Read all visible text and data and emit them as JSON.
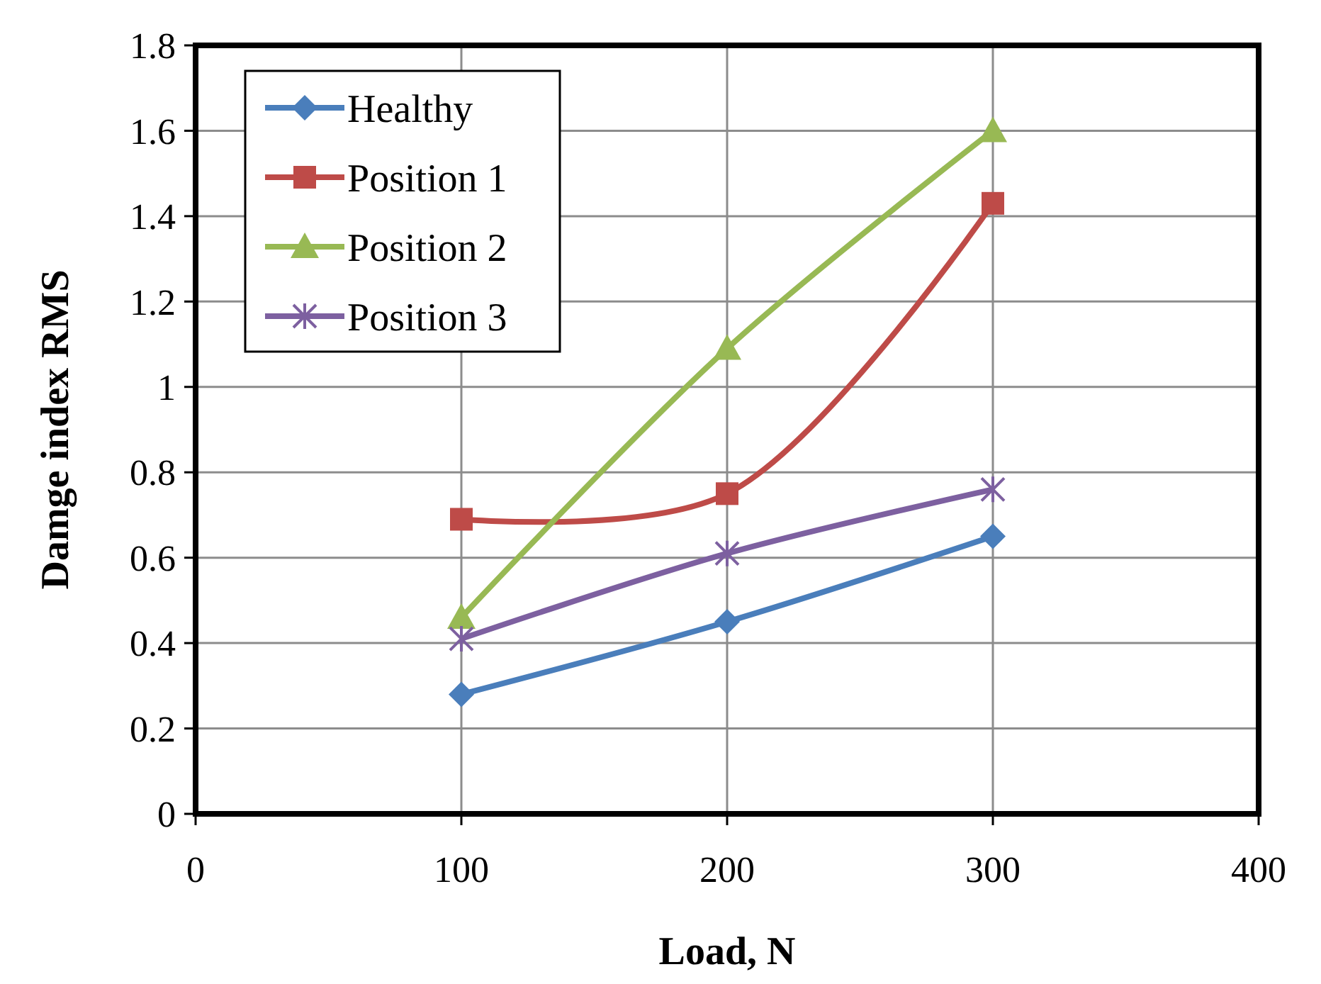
{
  "chart_data": {
    "type": "line",
    "xlabel": "Load, N",
    "ylabel": "Damge index RMS",
    "x": [
      100,
      200,
      300
    ],
    "xlim": [
      0,
      400
    ],
    "xticks": [
      0,
      100,
      200,
      300,
      400
    ],
    "ylim": [
      0,
      1.8
    ],
    "yticks": [
      0,
      0.2,
      0.4,
      0.6,
      0.8,
      1,
      1.2,
      1.4,
      1.6,
      1.8
    ],
    "grid": true,
    "legend": "top left",
    "series": [
      {
        "name": "Healthy",
        "color": "#4a7ebb",
        "marker": "diamond",
        "values": [
          0.28,
          0.45,
          0.65
        ]
      },
      {
        "name": "Position 1",
        "color": "#be4b48",
        "marker": "square",
        "values": [
          0.69,
          0.75,
          1.43
        ]
      },
      {
        "name": "Position 2",
        "color": "#98b954",
        "marker": "triangle",
        "values": [
          0.46,
          1.09,
          1.6
        ]
      },
      {
        "name": "Position 3",
        "color": "#7d60a0",
        "marker": "cross",
        "values": [
          0.41,
          0.61,
          0.76
        ]
      }
    ]
  }
}
